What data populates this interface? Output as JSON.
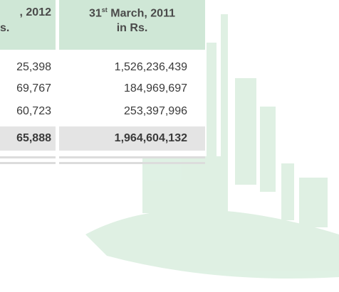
{
  "table": {
    "left_header": {
      "line1": ", 2012",
      "line2": "s."
    },
    "right_header": {
      "line1": [
        "31",
        "st",
        " March, 2011"
      ],
      "line2": "in Rs."
    },
    "rows": [
      [
        "25,398",
        "1,526,236,439"
      ],
      [
        "69,767",
        "184,969,697"
      ],
      [
        "60,723",
        "253,397,996"
      ],
      [
        "65,888",
        "1,964,604,132"
      ]
    ]
  }
}
